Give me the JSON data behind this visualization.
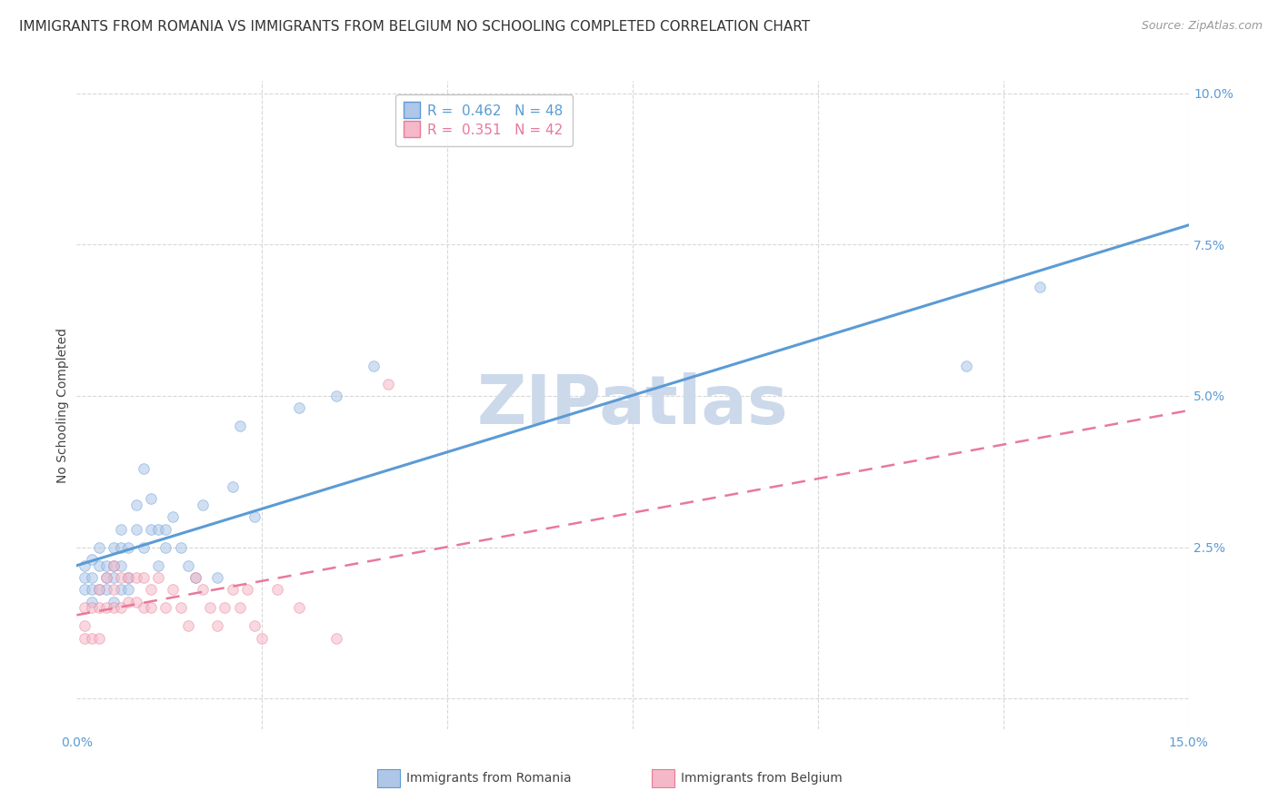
{
  "title": "IMMIGRANTS FROM ROMANIA VS IMMIGRANTS FROM BELGIUM NO SCHOOLING COMPLETED CORRELATION CHART",
  "source": "Source: ZipAtlas.com",
  "ylabel": "No Schooling Completed",
  "xlim": [
    0.0,
    0.15
  ],
  "ylim": [
    -0.005,
    0.102
  ],
  "xtick_pos": [
    0.0,
    0.025,
    0.05,
    0.075,
    0.1,
    0.125,
    0.15
  ],
  "ytick_pos": [
    0.0,
    0.025,
    0.05,
    0.075,
    0.1
  ],
  "romania_R": 0.462,
  "romania_N": 48,
  "belgium_R": 0.351,
  "belgium_N": 42,
  "romania_color": "#aec6e8",
  "belgium_color": "#f5b8c8",
  "romania_line_color": "#5b9bd5",
  "belgium_line_color": "#e8799a",
  "romania_x": [
    0.001,
    0.001,
    0.001,
    0.002,
    0.002,
    0.002,
    0.002,
    0.003,
    0.003,
    0.003,
    0.004,
    0.004,
    0.004,
    0.005,
    0.005,
    0.005,
    0.005,
    0.006,
    0.006,
    0.006,
    0.006,
    0.007,
    0.007,
    0.007,
    0.008,
    0.008,
    0.009,
    0.009,
    0.01,
    0.01,
    0.011,
    0.011,
    0.012,
    0.012,
    0.013,
    0.014,
    0.015,
    0.016,
    0.017,
    0.019,
    0.021,
    0.022,
    0.024,
    0.03,
    0.035,
    0.04,
    0.12,
    0.13
  ],
  "romania_y": [
    0.02,
    0.018,
    0.022,
    0.023,
    0.02,
    0.018,
    0.016,
    0.022,
    0.018,
    0.025,
    0.02,
    0.022,
    0.018,
    0.025,
    0.022,
    0.02,
    0.016,
    0.028,
    0.025,
    0.022,
    0.018,
    0.025,
    0.02,
    0.018,
    0.032,
    0.028,
    0.038,
    0.025,
    0.033,
    0.028,
    0.028,
    0.022,
    0.025,
    0.028,
    0.03,
    0.025,
    0.022,
    0.02,
    0.032,
    0.02,
    0.035,
    0.045,
    0.03,
    0.048,
    0.05,
    0.055,
    0.055,
    0.068
  ],
  "belgium_x": [
    0.001,
    0.001,
    0.001,
    0.002,
    0.002,
    0.003,
    0.003,
    0.003,
    0.004,
    0.004,
    0.005,
    0.005,
    0.005,
    0.006,
    0.006,
    0.007,
    0.007,
    0.008,
    0.008,
    0.009,
    0.009,
    0.01,
    0.01,
    0.011,
    0.012,
    0.013,
    0.014,
    0.015,
    0.016,
    0.017,
    0.018,
    0.019,
    0.02,
    0.021,
    0.022,
    0.023,
    0.024,
    0.025,
    0.027,
    0.03,
    0.035,
    0.042
  ],
  "belgium_y": [
    0.015,
    0.012,
    0.01,
    0.015,
    0.01,
    0.018,
    0.015,
    0.01,
    0.02,
    0.015,
    0.022,
    0.018,
    0.015,
    0.02,
    0.015,
    0.02,
    0.016,
    0.02,
    0.016,
    0.02,
    0.015,
    0.018,
    0.015,
    0.02,
    0.015,
    0.018,
    0.015,
    0.012,
    0.02,
    0.018,
    0.015,
    0.012,
    0.015,
    0.018,
    0.015,
    0.018,
    0.012,
    0.01,
    0.018,
    0.015,
    0.01,
    0.052
  ],
  "background_color": "#ffffff",
  "grid_color": "#d8d8d8",
  "watermark": "ZIPatlas",
  "watermark_color": "#ccd9ea",
  "title_fontsize": 11,
  "axis_label_fontsize": 10,
  "tick_fontsize": 10,
  "legend_fontsize": 11,
  "marker_size": 70,
  "marker_alpha": 0.55
}
